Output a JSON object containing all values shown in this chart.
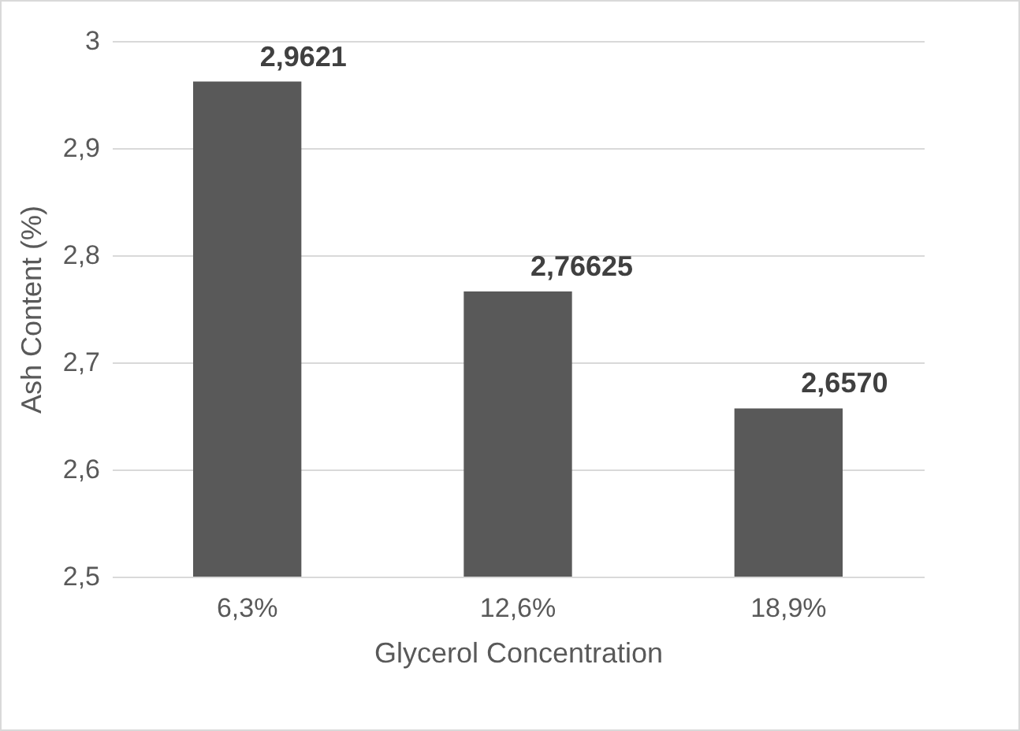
{
  "chart_data": {
    "type": "bar",
    "xlabel": "Glycerol Concentration",
    "ylabel": "Ash Content (%)",
    "categories": [
      "6,3%",
      "12,6%",
      "18,9%"
    ],
    "values": [
      2.9621,
      2.76625,
      2.657
    ],
    "value_labels": [
      "2,9621",
      "2,76625",
      "2,6570"
    ],
    "color": "#595959",
    "ylim": [
      2.5,
      3.0
    ],
    "yticks": [
      {
        "value": 2.5,
        "label": "2,5"
      },
      {
        "value": 2.6,
        "label": "2,6"
      },
      {
        "value": 2.7,
        "label": "2,7"
      },
      {
        "value": 2.8,
        "label": "2,8"
      },
      {
        "value": 2.9,
        "label": "2,9"
      },
      {
        "value": 3,
        "label": "3"
      }
    ],
    "grid": "y"
  }
}
